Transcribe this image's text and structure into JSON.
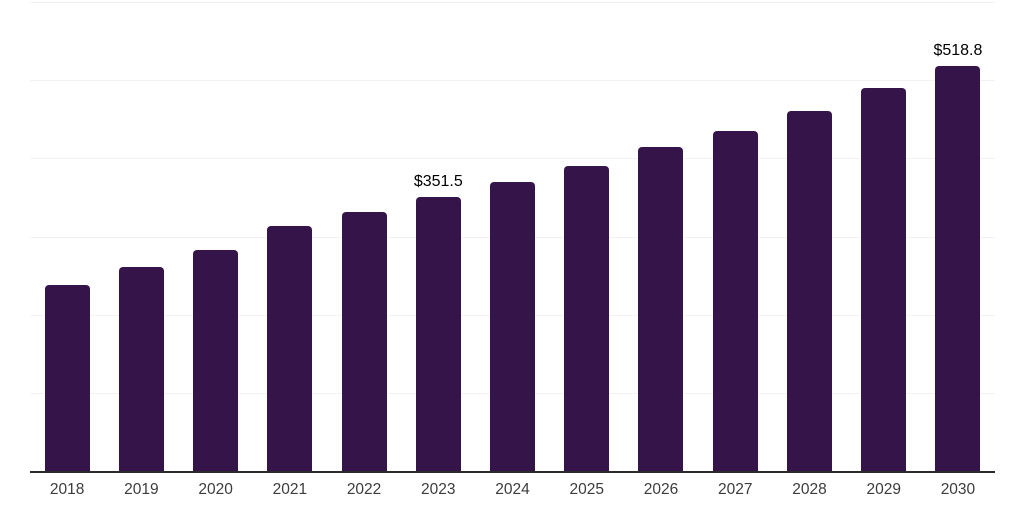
{
  "chart_data": {
    "type": "bar",
    "title": "",
    "xlabel": "",
    "ylabel": "",
    "categories": [
      "2018",
      "2019",
      "2020",
      "2021",
      "2022",
      "2023",
      "2024",
      "2025",
      "2026",
      "2027",
      "2028",
      "2029",
      "2030"
    ],
    "values": [
      239.8,
      262.6,
      284.2,
      314.6,
      332.4,
      351.5,
      370.5,
      392.0,
      416.1,
      436.4,
      461.8,
      491.0,
      518.8
    ],
    "data_labels": {
      "2023": "$351.5",
      "2030": "$518.8"
    },
    "ylim": [
      0,
      600
    ],
    "gridline_step": 100,
    "grid": "horizontal",
    "legend_position": "none",
    "y_tick_labels_visible": false,
    "colors": {
      "bar": "#351449",
      "axis": "#2b2b2b",
      "gridline": "#f2f2f2",
      "tick_label": "#3c3c3c",
      "data_label": "#000000"
    }
  }
}
